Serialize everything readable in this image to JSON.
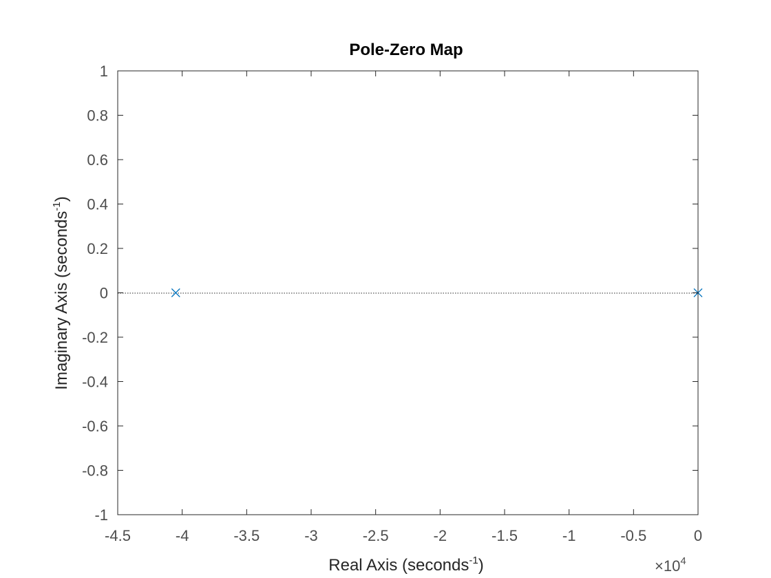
{
  "chart_data": {
    "type": "scatter",
    "title": "Pole-Zero Map",
    "xlabel": "Real Axis (seconds",
    "xlabel_sup": "-1",
    "xlabel_close": ")",
    "ylabel": "Imaginary Axis (seconds",
    "ylabel_sup": "-1",
    "ylabel_close": ")",
    "x_exponent_base": "×10",
    "x_exponent_power": "4",
    "xlim": [
      -4.5,
      0
    ],
    "ylim": [
      -1,
      1
    ],
    "xticks": [
      "-4.5",
      "-4",
      "-3.5",
      "-3",
      "-2.5",
      "-2",
      "-1.5",
      "-1",
      "-0.5",
      "0"
    ],
    "yticks": [
      "-1",
      "-0.8",
      "-0.6",
      "-0.4",
      "-0.2",
      "0",
      "0.2",
      "0.4",
      "0.6",
      "0.8",
      "1"
    ],
    "grid": false,
    "reference_line": {
      "y": 0,
      "style": "dotted"
    },
    "marker": "x",
    "color": "#0072bd",
    "poles": [
      {
        "re": -4.05,
        "im": 0
      },
      {
        "re": 0,
        "im": 0
      }
    ]
  }
}
